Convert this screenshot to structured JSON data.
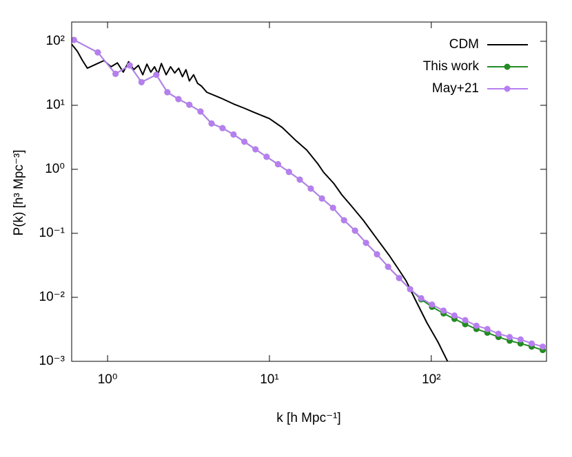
{
  "chart_data": {
    "type": "line",
    "xlabel": "k [h Mpc⁻¹]",
    "ylabel": "P(k) [h³ Mpc⁻³]",
    "xscale": "log",
    "yscale": "log",
    "xlim": [
      0.6,
      515
    ],
    "ylim": [
      0.001,
      200
    ],
    "xticks": [
      {
        "value": 1,
        "label": "10⁰"
      },
      {
        "value": 10,
        "label": "10¹"
      },
      {
        "value": 100,
        "label": "10²"
      }
    ],
    "yticks": [
      {
        "value": 0.001,
        "label": "10⁻³"
      },
      {
        "value": 0.01,
        "label": "10⁻²"
      },
      {
        "value": 0.1,
        "label": "10⁻¹"
      },
      {
        "value": 1,
        "label": "10⁰"
      },
      {
        "value": 10,
        "label": "10¹"
      },
      {
        "value": 100,
        "label": "10²"
      }
    ],
    "legend": "top-right",
    "series": [
      {
        "name": "CDM",
        "color": "#000000",
        "markers": false,
        "x": [
          0.6,
          0.65,
          0.7,
          0.75,
          0.85,
          0.95,
          1.05,
          1.15,
          1.25,
          1.35,
          1.45,
          1.55,
          1.65,
          1.75,
          1.85,
          1.95,
          2.05,
          2.15,
          2.3,
          2.45,
          2.6,
          2.75,
          2.9,
          3.05,
          3.2,
          3.4,
          3.6,
          3.8,
          4.1,
          5,
          6,
          7,
          8,
          10,
          12,
          14.6,
          17,
          20,
          21.6,
          25,
          28,
          32,
          38,
          47,
          55,
          63,
          70,
          80,
          94,
          110,
          126
        ],
        "values": [
          90,
          70,
          50,
          38,
          44,
          50,
          40,
          46,
          33,
          48,
          36,
          42,
          30,
          44,
          33,
          40,
          31,
          45,
          30,
          40,
          32,
          38,
          28,
          36,
          24,
          30,
          22,
          20,
          16,
          13,
          10.5,
          9,
          7.8,
          6.2,
          4.5,
          2.8,
          2.0,
          1.2,
          0.9,
          0.6,
          0.4,
          0.27,
          0.16,
          0.077,
          0.045,
          0.027,
          0.018,
          0.009,
          0.004,
          0.002,
          0.001
        ]
      },
      {
        "name": "This work",
        "color": "#228b22",
        "markers": true,
        "x": [
          0.62,
          0.87,
          1.12,
          1.37,
          1.62,
          2.0,
          2.34,
          2.74,
          3.2,
          3.75,
          4.39,
          5.13,
          6.0,
          7.0,
          8.2,
          9.6,
          11.3,
          13.2,
          15.4,
          18.0,
          21.1,
          24.7,
          28.9,
          33.8,
          39.5,
          46.2,
          54.1,
          63.3,
          74.0,
          86.6,
          101,
          119,
          139,
          162,
          190,
          222,
          260,
          305,
          356,
          417,
          488
        ],
        "values": [
          105,
          67,
          31,
          42,
          23,
          30,
          16,
          12.5,
          10.2,
          8.0,
          5.2,
          4.4,
          3.5,
          2.7,
          2.05,
          1.57,
          1.2,
          0.91,
          0.69,
          0.5,
          0.35,
          0.25,
          0.16,
          0.11,
          0.071,
          0.047,
          0.03,
          0.02,
          0.0134,
          0.0093,
          0.0071,
          0.0056,
          0.0046,
          0.0038,
          0.0032,
          0.0028,
          0.0024,
          0.0021,
          0.0019,
          0.0017,
          0.0015
        ]
      },
      {
        "name": "May+21",
        "color": "#b77ef0",
        "markers": true,
        "x": [
          0.62,
          0.87,
          1.12,
          1.37,
          1.62,
          2.0,
          2.34,
          2.74,
          3.2,
          3.75,
          4.39,
          5.13,
          6.0,
          7.0,
          8.2,
          9.6,
          11.3,
          13.2,
          15.4,
          18.0,
          21.1,
          24.7,
          28.9,
          33.8,
          39.5,
          46.2,
          54.1,
          63.3,
          74.0,
          86.6,
          101,
          119,
          139,
          162,
          190,
          222,
          260,
          305,
          356,
          417,
          488
        ],
        "values": [
          105,
          67,
          31,
          42,
          23,
          30,
          16,
          12.5,
          10.2,
          8.0,
          5.2,
          4.4,
          3.5,
          2.7,
          2.05,
          1.57,
          1.2,
          0.91,
          0.69,
          0.5,
          0.35,
          0.25,
          0.16,
          0.11,
          0.071,
          0.047,
          0.03,
          0.02,
          0.0134,
          0.0097,
          0.0077,
          0.0062,
          0.0052,
          0.0044,
          0.0036,
          0.0032,
          0.0027,
          0.0024,
          0.0022,
          0.0019,
          0.0017
        ]
      }
    ]
  }
}
